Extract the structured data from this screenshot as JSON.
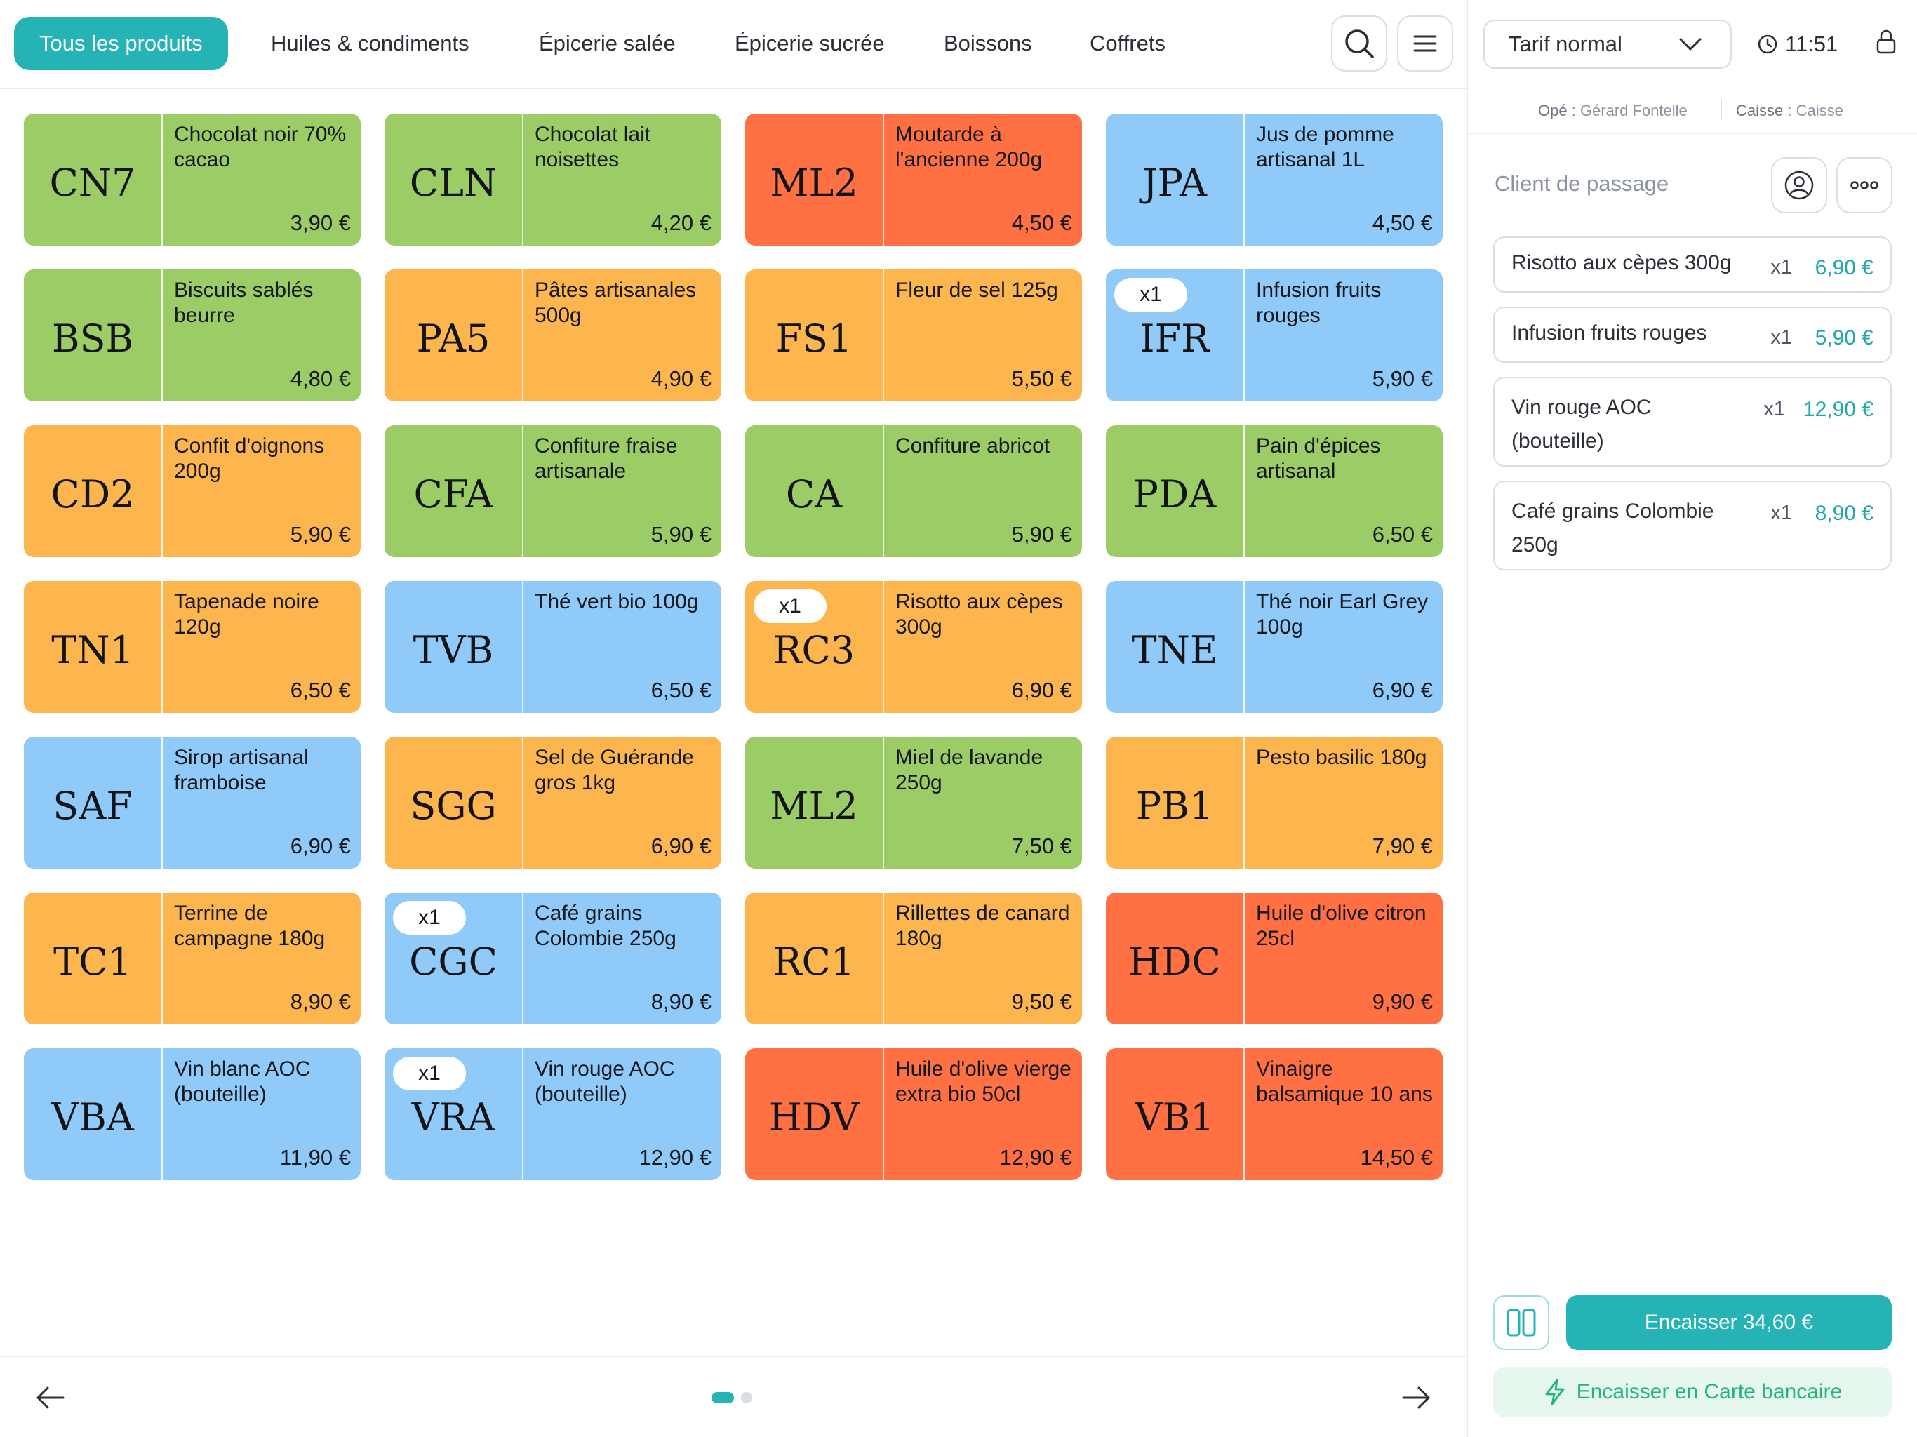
{
  "categories": [
    {
      "label": "Tous les produits",
      "active": true
    },
    {
      "label": "Huiles & condiments"
    },
    {
      "label": "Épicerie salée"
    },
    {
      "label": "Épicerie sucrée"
    },
    {
      "label": "Boissons"
    },
    {
      "label": "Coffrets"
    }
  ],
  "header": {
    "tarif": "Tarif normal",
    "time": "11:51"
  },
  "operator": {
    "ope_label": "Opé",
    "ope_value": "Gérard Fontelle",
    "caisse_label": "Caisse",
    "caisse_value": "Caisse"
  },
  "client": "Client de passage",
  "colors": {
    "accent": "#25b3b6",
    "green": "#9ccc65",
    "orange": "#fdb54e",
    "red": "#ff7043",
    "blue": "#90caf9",
    "pay_cb": "#22b573"
  },
  "tiles": [
    {
      "code": "CN7",
      "name": "Chocolat noir 70% cacao",
      "price": "3,90 €",
      "color": "green",
      "qty": ""
    },
    {
      "code": "CLN",
      "name": "Chocolat lait noisettes",
      "price": "4,20 €",
      "color": "green",
      "qty": ""
    },
    {
      "code": "ML2",
      "name": "Moutarde à l'ancienne 200g",
      "price": "4,50 €",
      "color": "red",
      "qty": ""
    },
    {
      "code": "JPA",
      "name": "Jus de pomme artisanal 1L",
      "price": "4,50 €",
      "color": "blue",
      "qty": ""
    },
    {
      "code": "BSB",
      "name": "Biscuits sablés beurre",
      "price": "4,80 €",
      "color": "green",
      "qty": ""
    },
    {
      "code": "PA5",
      "name": "Pâtes artisanales 500g",
      "price": "4,90 €",
      "color": "orange",
      "qty": ""
    },
    {
      "code": "FS1",
      "name": "Fleur de sel 125g",
      "price": "5,50 €",
      "color": "orange",
      "qty": ""
    },
    {
      "code": "IFR",
      "name": "Infusion fruits rouges",
      "price": "5,90 €",
      "color": "blue",
      "qty": "x1"
    },
    {
      "code": "CD2",
      "name": "Confit d'oignons 200g",
      "price": "5,90 €",
      "color": "orange",
      "qty": ""
    },
    {
      "code": "CFA",
      "name": "Confiture fraise artisanale",
      "price": "5,90 €",
      "color": "green",
      "qty": ""
    },
    {
      "code": "CA",
      "name": "Confiture abricot",
      "price": "5,90 €",
      "color": "green",
      "qty": ""
    },
    {
      "code": "PDA",
      "name": "Pain d'épices artisanal",
      "price": "6,50 €",
      "color": "green",
      "qty": ""
    },
    {
      "code": "TN1",
      "name": "Tapenade noire 120g",
      "price": "6,50 €",
      "color": "orange",
      "qty": ""
    },
    {
      "code": "TVB",
      "name": "Thé vert bio 100g",
      "price": "6,50 €",
      "color": "blue",
      "qty": ""
    },
    {
      "code": "RC3",
      "name": "Risotto aux cèpes 300g",
      "price": "6,90 €",
      "color": "orange",
      "qty": "x1"
    },
    {
      "code": "TNE",
      "name": "Thé noir Earl Grey 100g",
      "price": "6,90 €",
      "color": "blue",
      "qty": ""
    },
    {
      "code": "SAF",
      "name": "Sirop artisanal framboise",
      "price": "6,90 €",
      "color": "blue",
      "qty": ""
    },
    {
      "code": "SGG",
      "name": "Sel de Guérande gros 1kg",
      "price": "6,90 €",
      "color": "orange",
      "qty": ""
    },
    {
      "code": "ML2",
      "name": "Miel de lavande 250g",
      "price": "7,50 €",
      "color": "green",
      "qty": ""
    },
    {
      "code": "PB1",
      "name": "Pesto basilic 180g",
      "price": "7,90 €",
      "color": "orange",
      "qty": ""
    },
    {
      "code": "TC1",
      "name": "Terrine de campagne 180g",
      "price": "8,90 €",
      "color": "orange",
      "qty": ""
    },
    {
      "code": "CGC",
      "name": "Café grains Colombie 250g",
      "price": "8,90 €",
      "color": "blue",
      "qty": "x1"
    },
    {
      "code": "RC1",
      "name": "Rillettes de canard 180g",
      "price": "9,50 €",
      "color": "orange",
      "qty": ""
    },
    {
      "code": "HDC",
      "name": "Huile d'olive citron 25cl",
      "price": "9,90 €",
      "color": "red",
      "qty": ""
    },
    {
      "code": "VBA",
      "name": "Vin blanc AOC (bouteille)",
      "price": "11,90 €",
      "color": "blue",
      "qty": ""
    },
    {
      "code": "VRA",
      "name": "Vin rouge AOC (bouteille)",
      "price": "12,90 €",
      "color": "blue",
      "qty": "x1"
    },
    {
      "code": "HDV",
      "name": "Huile d'olive vierge extra bio 50cl",
      "price": "12,90 €",
      "color": "red",
      "qty": ""
    },
    {
      "code": "VB1",
      "name": "Vinaigre balsamique 10 ans",
      "price": "14,50 €",
      "color": "red",
      "qty": ""
    }
  ],
  "cart": [
    {
      "name": "Risotto aux cèpes 300g",
      "qty": "x1",
      "price": "6,90 €"
    },
    {
      "name": "Infusion fruits rouges",
      "qty": "x1",
      "price": "5,90 €"
    },
    {
      "name": "Vin rouge AOC (bouteille)",
      "qty": "x1",
      "price": "12,90 €"
    },
    {
      "name": "Café grains Colombie 250g",
      "qty": "x1",
      "price": "8,90 €"
    }
  ],
  "actions": {
    "pay": "Encaisser 34,60 €",
    "pay_cb": "Encaisser en Carte bancaire"
  },
  "pagination": {
    "current": 1,
    "total": 2
  }
}
